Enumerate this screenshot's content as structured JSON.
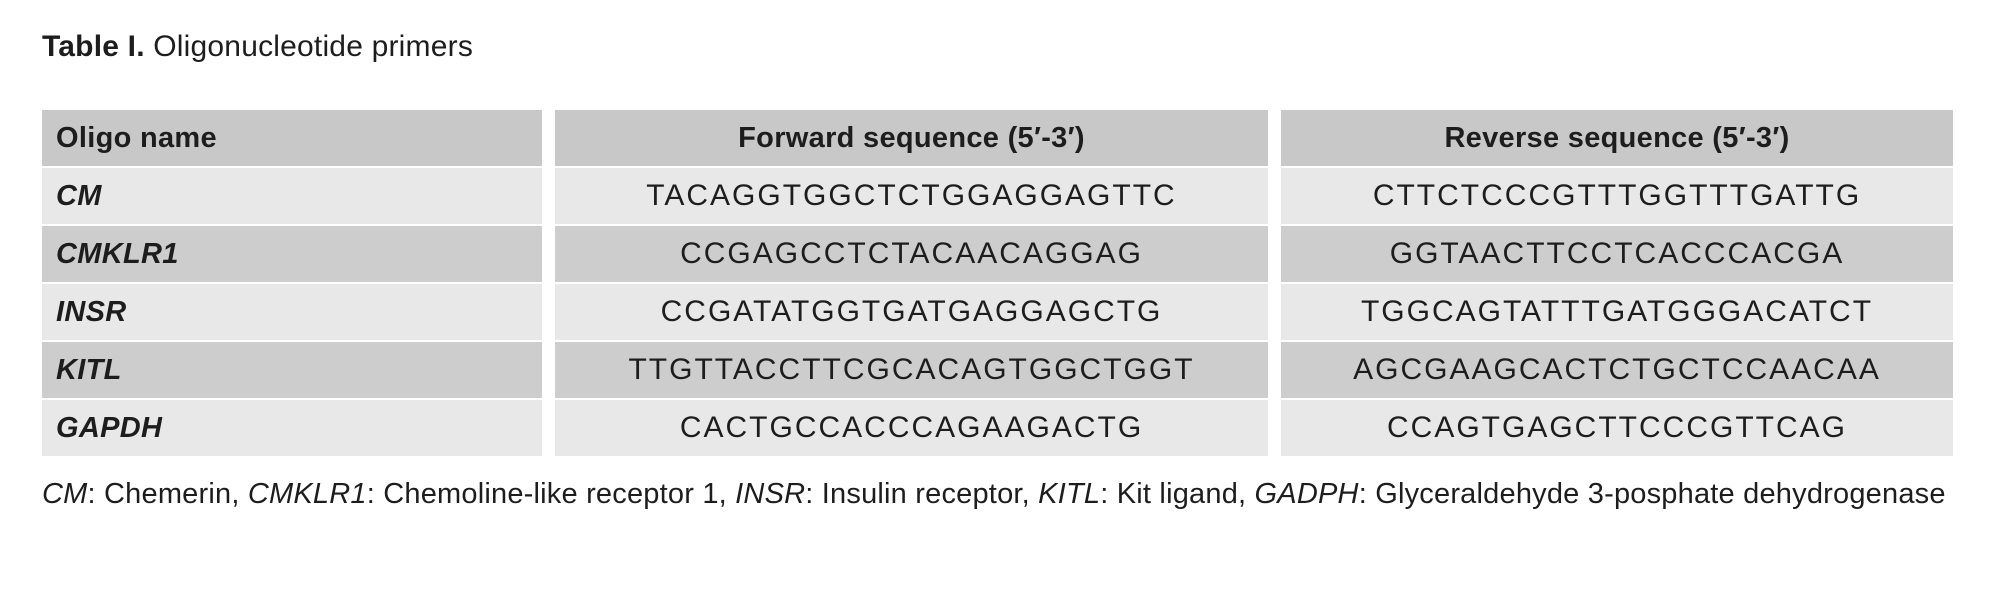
{
  "title": {
    "label": "Table I.",
    "text": " Oligonucleotide primers"
  },
  "table": {
    "columns": [
      {
        "label": "Oligo name",
        "align": "left"
      },
      {
        "label": "Forward sequence (5′-3′)",
        "align": "center"
      },
      {
        "label": "Reverse sequence (5′-3′)",
        "align": "center"
      }
    ],
    "rows": [
      {
        "oligo": "CM",
        "forward": "TACAGGTGGCTCTGGAGGAGTTC",
        "reverse": "CTTCTCCCGTTTGGTTTGATTG"
      },
      {
        "oligo": "CMKLR1",
        "forward": "CCGAGCCTCTACAACAGGAG",
        "reverse": "GGTAACTTCCTCACCCACGA"
      },
      {
        "oligo": "INSR",
        "forward": "CCGATATGGTGATGAGGAGCTG",
        "reverse": "TGGCAGTATTTGATGGGACATCT"
      },
      {
        "oligo": "KITL",
        "forward": "TTGTTACCTTCGCACAGTGGCTGGT",
        "reverse": "AGCGAAGCACTCTGCTCCAACAA"
      },
      {
        "oligo": "GAPDH",
        "forward": "CACTGCCACCCAGAAGACTG",
        "reverse": "CCAGTGAGCTTCCCGTTCAG"
      }
    ],
    "colors": {
      "header_bg": "#c8c8c8",
      "row_light_bg": "#e8e8e8",
      "row_dark_bg": "#cdcdcd",
      "text": "#1d1d1d"
    }
  },
  "footnote": {
    "segments": [
      {
        "text": "CM",
        "italic": true
      },
      {
        "text": ": Chemerin, ",
        "italic": false
      },
      {
        "text": "CMKLR1",
        "italic": true
      },
      {
        "text": ": Chemoline-like receptor 1, ",
        "italic": false
      },
      {
        "text": "INSR",
        "italic": true
      },
      {
        "text": ": Insulin receptor, ",
        "italic": false
      },
      {
        "text": "KITL",
        "italic": true
      },
      {
        "text": ": Kit ligand, ",
        "italic": false
      },
      {
        "text": "GADPH",
        "italic": true
      },
      {
        "text": ": Glyceraldehyde 3-posphate dehydrogenase",
        "italic": false
      }
    ]
  }
}
